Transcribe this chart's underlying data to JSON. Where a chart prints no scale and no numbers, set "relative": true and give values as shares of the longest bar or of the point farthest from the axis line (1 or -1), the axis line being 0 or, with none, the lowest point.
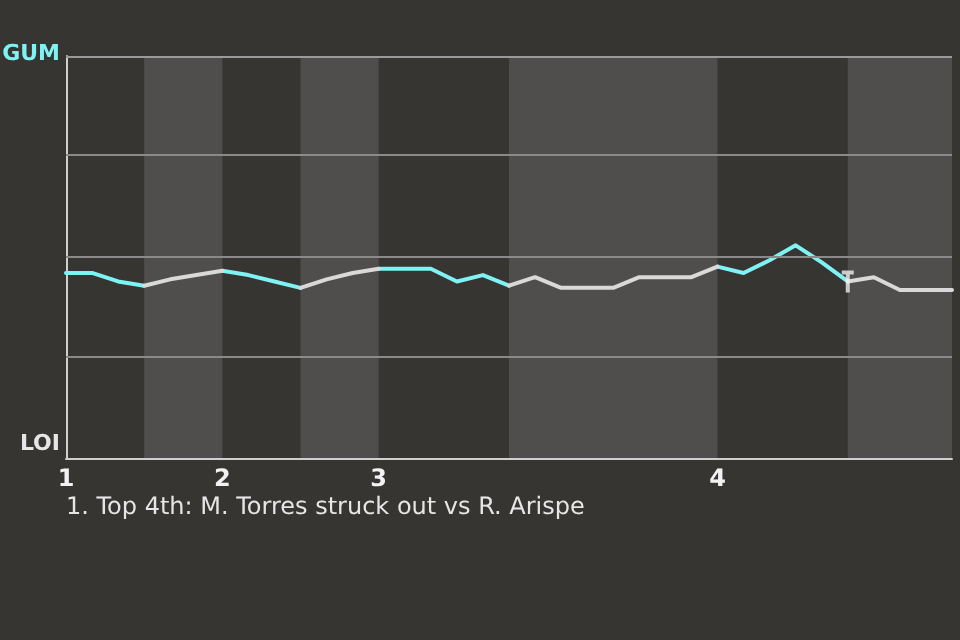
{
  "chart_data": {
    "type": "line",
    "relative": true,
    "categories": [
      "1",
      null,
      null,
      null,
      null,
      null,
      "2",
      null,
      null,
      null,
      null,
      null,
      "3",
      null,
      null,
      null,
      null,
      null,
      null,
      null,
      null,
      null,
      null,
      null,
      null,
      "4",
      null,
      null,
      null,
      null,
      null,
      null,
      null,
      null,
      null
    ],
    "ref_lines": [
      {
        "axis": "y",
        "value": 0.48,
        "color": "#8a8a8a"
      },
      {
        "axis": "y",
        "value": 0.95,
        "color": "#8a8a8a"
      },
      {
        "axis": "y",
        "value": 1.43,
        "color": "#8a8a8a"
      },
      {
        "axis": "y",
        "value": 1.89,
        "color": "#9a9a9a"
      }
    ],
    "marker": "none",
    "series": [
      {
        "color": "#7ff3f3",
        "values": [
          0.87,
          0.87,
          0.83,
          0.81,
          null,
          null,
          0.88,
          0.86,
          0.83,
          0.8,
          null,
          null,
          0.89,
          0.89,
          0.89,
          0.83,
          0.86,
          0.81,
          null,
          null,
          null,
          null,
          null,
          null,
          null,
          0.9,
          0.87,
          0.93,
          1,
          0.92,
          0.83,
          null,
          null,
          null,
          null
        ]
      },
      {
        "color": "#d9d9d9",
        "values": [
          null,
          null,
          null,
          0.81,
          0.84,
          0.86,
          0.88,
          null,
          null,
          0.8,
          0.84,
          0.87,
          0.89,
          null,
          null,
          null,
          null,
          0.81,
          0.85,
          0.8,
          0.8,
          0.8,
          0.85,
          0.85,
          0.85,
          0.9,
          null,
          null,
          null,
          null,
          0.83,
          0.85,
          0.79,
          0.79,
          0.79
        ]
      },
      {
        "type": "scatter",
        "color": "#f0f0f0",
        "values": [
          null,
          null,
          null,
          null,
          null,
          null,
          null,
          null,
          null,
          null,
          null,
          null,
          null,
          null,
          null,
          null,
          null,
          null,
          null,
          null,
          null,
          null,
          null,
          null,
          null,
          null,
          null,
          null,
          null,
          null,
          0.83,
          null,
          null,
          null,
          null
        ]
      }
    ],
    "annotations": [
      "GUM",
      "LOI",
      "1. Top 4th: M. Torres struck out vs R. Arispe"
    ]
  }
}
